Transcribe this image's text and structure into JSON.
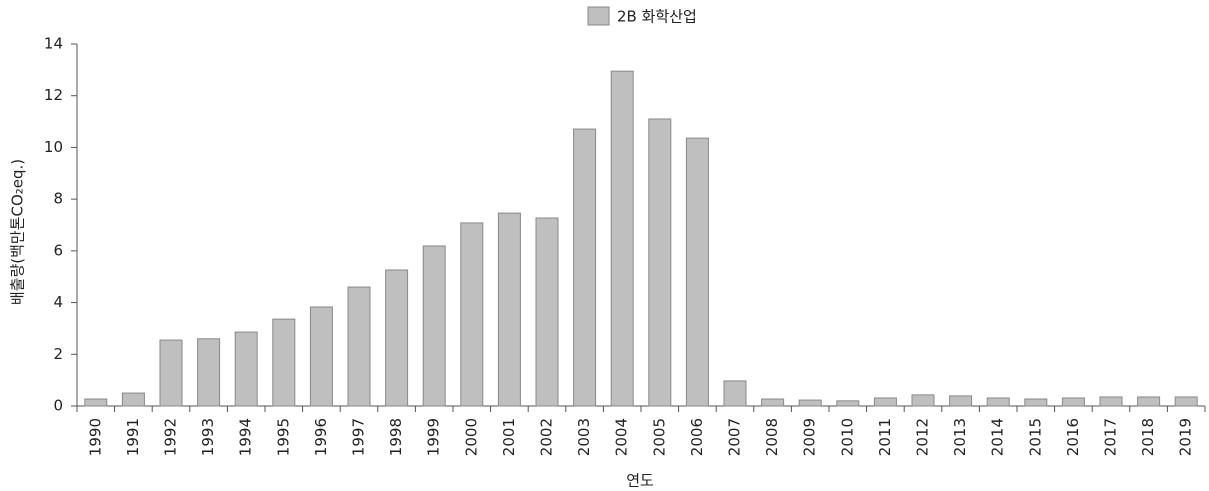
{
  "chart_data": {
    "type": "bar",
    "series": [
      {
        "name": "2B 화학산업",
        "color": "#bfbfbf",
        "values": [
          0.27,
          0.5,
          2.55,
          2.6,
          2.86,
          3.36,
          3.83,
          4.6,
          5.26,
          6.19,
          7.08,
          7.46,
          7.27,
          10.71,
          12.95,
          11.1,
          10.36,
          0.97,
          0.27,
          0.23,
          0.2,
          0.31,
          0.43,
          0.39,
          0.31,
          0.27,
          0.31,
          0.35,
          0.35,
          0.35
        ]
      }
    ],
    "categories": [
      "1990",
      "1991",
      "1992",
      "1993",
      "1994",
      "1995",
      "1996",
      "1997",
      "1998",
      "1999",
      "2000",
      "2001",
      "2002",
      "2003",
      "2004",
      "2005",
      "2006",
      "2007",
      "2008",
      "2009",
      "2010",
      "2011",
      "2012",
      "2013",
      "2014",
      "2015",
      "2016",
      "2017",
      "2018",
      "2019"
    ],
    "x_label": "연도",
    "y_label": "배출량(백만톤CO₂eq.)",
    "ylim": [
      0,
      14
    ],
    "yticks": [
      0,
      2,
      4,
      6,
      8,
      10,
      12,
      14
    ],
    "legend": "top"
  }
}
